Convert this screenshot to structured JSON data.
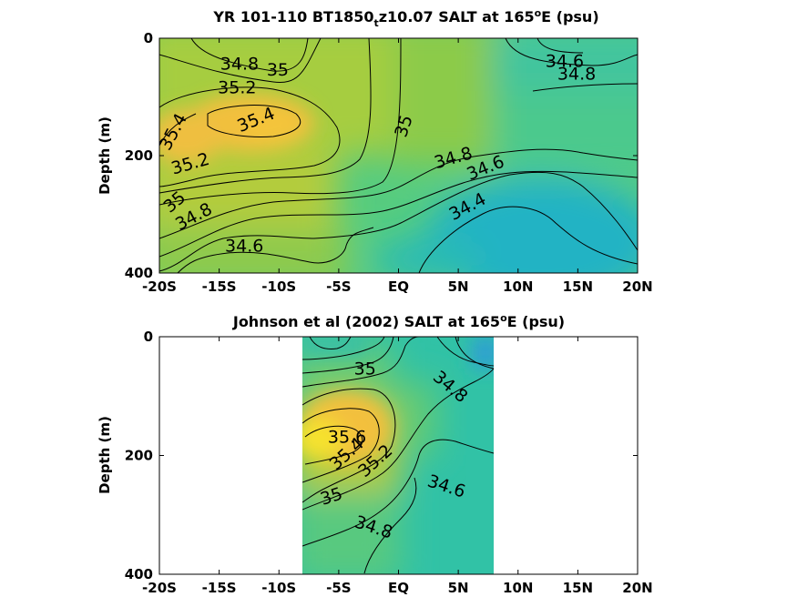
{
  "colors": {
    "fresh": "#2b9ad8",
    "teal": "#2fc4a4",
    "green": "#8ec73f",
    "mid_green": "#5fcc75",
    "yellow_green": "#b6cc3a",
    "orange": "#f2c23d",
    "yellow": "#f6e52c",
    "contour": "#000000"
  },
  "chart_data": [
    {
      "type": "heatmap",
      "title": "YR 101-110 BT1850",
      "title_sub": "t",
      "title_rest": "z10.07 SALT at 165",
      "title_sup": "o",
      "title_end": "E (psu)",
      "xlabel": "",
      "ylabel": "Depth (m)",
      "x_ticks": [
        "-20S",
        "-15S",
        "-10S",
        "-5S",
        "EQ",
        "5N",
        "10N",
        "15N",
        "20N"
      ],
      "x_range": [
        -20,
        20
      ],
      "y_ticks": [
        "0",
        "200",
        "400"
      ],
      "y_range": [
        0,
        400
      ],
      "y_reversed": true,
      "contour_labels": [
        {
          "text": "34.8",
          "lat": -13.3,
          "depth": 45,
          "angle": 0
        },
        {
          "text": "35",
          "lat": -10.1,
          "depth": 55,
          "angle": 0
        },
        {
          "text": "35.2",
          "lat": -13.5,
          "depth": 85,
          "angle": 0
        },
        {
          "text": "35.4",
          "lat": -11.9,
          "depth": 140,
          "angle": -22
        },
        {
          "text": "35.4",
          "lat": -18.8,
          "depth": 160,
          "angle": -62
        },
        {
          "text": "35",
          "lat": 0.5,
          "depth": 150,
          "angle": -72
        },
        {
          "text": "35.2",
          "lat": -17.4,
          "depth": 215,
          "angle": -16
        },
        {
          "text": "34.8",
          "lat": 4.6,
          "depth": 205,
          "angle": -16
        },
        {
          "text": "34.6",
          "lat": 7.3,
          "depth": 222,
          "angle": -22
        },
        {
          "text": "35",
          "lat": -18.7,
          "depth": 280,
          "angle": -40
        },
        {
          "text": "34.8",
          "lat": -17.1,
          "depth": 305,
          "angle": -28
        },
        {
          "text": "34.4",
          "lat": 5.8,
          "depth": 288,
          "angle": -28
        },
        {
          "text": "34.6",
          "lat": -12.9,
          "depth": 355,
          "angle": 0
        },
        {
          "text": "34.6",
          "lat": 13.9,
          "depth": 40,
          "angle": 0
        },
        {
          "text": "34.8",
          "lat": 14.9,
          "depth": 62,
          "angle": 0
        }
      ]
    },
    {
      "type": "heatmap",
      "title": "Johnson et al (2002) SALT at 165",
      "title_sup": "o",
      "title_end": "E (psu)",
      "xlabel": "",
      "ylabel": "Depth (m)",
      "x_ticks": [
        "-20S",
        "-15S",
        "-10S",
        "-5S",
        "EQ",
        "5N",
        "10N",
        "15N",
        "20N"
      ],
      "x_range": [
        -20,
        20
      ],
      "y_ticks": [
        "0",
        "200",
        "400"
      ],
      "y_range": [
        0,
        400
      ],
      "y_reversed": true,
      "data_lat_range": [
        -8,
        8
      ],
      "contour_labels": [
        {
          "text": "35",
          "lat": -2.8,
          "depth": 55,
          "angle": 0
        },
        {
          "text": "34.8",
          "lat": 4.3,
          "depth": 85,
          "angle": 40
        },
        {
          "text": "35.6",
          "lat": -4.3,
          "depth": 170,
          "angle": 0
        },
        {
          "text": "35.4",
          "lat": -4.3,
          "depth": 198,
          "angle": -42
        },
        {
          "text": "35.2",
          "lat": -1.9,
          "depth": 210,
          "angle": -42
        },
        {
          "text": "34.6",
          "lat": 4,
          "depth": 253,
          "angle": 18
        },
        {
          "text": "35",
          "lat": -5.6,
          "depth": 270,
          "angle": -18
        },
        {
          "text": "34.8",
          "lat": -2.1,
          "depth": 322,
          "angle": 18
        }
      ]
    }
  ]
}
